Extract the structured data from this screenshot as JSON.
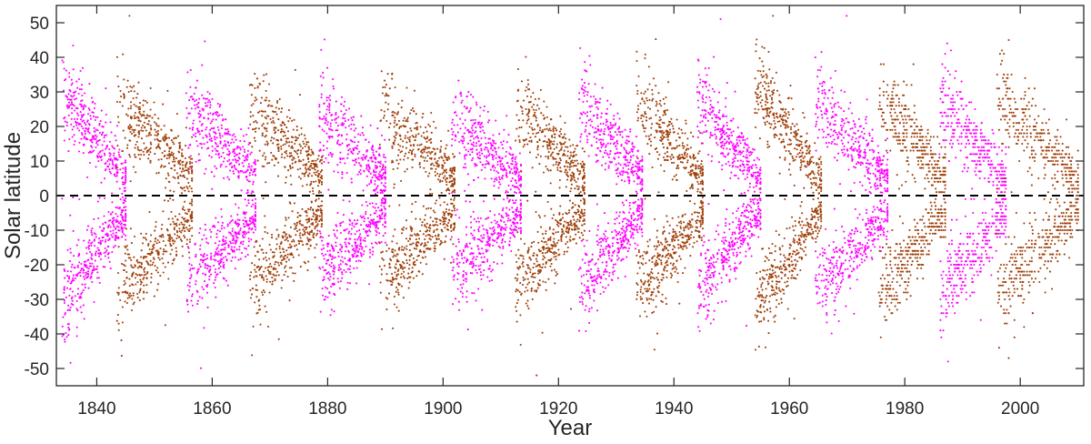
{
  "chart_data": {
    "type": "scatter",
    "title": "",
    "xlabel": "Year",
    "ylabel": "Solar latitude",
    "xlim": [
      1833,
      2011
    ],
    "ylim": [
      -55,
      55
    ],
    "x_ticks": [
      1840,
      1860,
      1880,
      1900,
      1920,
      1940,
      1960,
      1980,
      2000
    ],
    "y_ticks": [
      50,
      40,
      30,
      20,
      10,
      0,
      -10,
      -20,
      -30,
      -40,
      -50
    ],
    "reference_line": {
      "y": 0,
      "style": "dashed",
      "color": "#000000"
    },
    "grid": false,
    "legend": "none",
    "colors": {
      "odd_cycle": "#ff00ff",
      "even_cycle": "#a0400a"
    },
    "series": [
      {
        "cycle_index": 0,
        "color_key": "odd_cycle",
        "start": 1834.0,
        "end": 1845.0,
        "lat_start": 30,
        "lat_end": 6,
        "quantized": false
      },
      {
        "cycle_index": 1,
        "color_key": "even_cycle",
        "start": 1843.5,
        "end": 1856.5,
        "lat_start": 27,
        "lat_end": 6,
        "quantized": false
      },
      {
        "cycle_index": 2,
        "color_key": "odd_cycle",
        "start": 1855.5,
        "end": 1867.5,
        "lat_start": 25,
        "lat_end": 6,
        "quantized": false
      },
      {
        "cycle_index": 3,
        "color_key": "even_cycle",
        "start": 1866.5,
        "end": 1879.0,
        "lat_start": 25,
        "lat_end": 6,
        "quantized": false
      },
      {
        "cycle_index": 4,
        "color_key": "odd_cycle",
        "start": 1878.5,
        "end": 1890.0,
        "lat_start": 24,
        "lat_end": 5,
        "quantized": false
      },
      {
        "cycle_index": 5,
        "color_key": "even_cycle",
        "start": 1889.0,
        "end": 1902.0,
        "lat_start": 25,
        "lat_end": 5,
        "quantized": false
      },
      {
        "cycle_index": 6,
        "color_key": "odd_cycle",
        "start": 1901.5,
        "end": 1913.5,
        "lat_start": 22,
        "lat_end": 5,
        "quantized": false
      },
      {
        "cycle_index": 7,
        "color_key": "even_cycle",
        "start": 1912.5,
        "end": 1924.5,
        "lat_start": 26,
        "lat_end": 5,
        "quantized": false
      },
      {
        "cycle_index": 8,
        "color_key": "odd_cycle",
        "start": 1923.5,
        "end": 1934.5,
        "lat_start": 27,
        "lat_end": 5,
        "quantized": false
      },
      {
        "cycle_index": 9,
        "color_key": "even_cycle",
        "start": 1933.5,
        "end": 1945.0,
        "lat_start": 28,
        "lat_end": 5,
        "quantized": false
      },
      {
        "cycle_index": 10,
        "color_key": "odd_cycle",
        "start": 1944.0,
        "end": 1955.0,
        "lat_start": 27,
        "lat_end": 5,
        "quantized": false
      },
      {
        "cycle_index": 11,
        "color_key": "even_cycle",
        "start": 1954.0,
        "end": 1965.5,
        "lat_start": 32,
        "lat_end": 5,
        "quantized": false
      },
      {
        "cycle_index": 12,
        "color_key": "odd_cycle",
        "start": 1964.5,
        "end": 1977.0,
        "lat_start": 27,
        "lat_end": 5,
        "quantized": false
      },
      {
        "cycle_index": 13,
        "color_key": "even_cycle",
        "start": 1975.5,
        "end": 1987.0,
        "lat_start": 28,
        "lat_end": 5,
        "quantized": true
      },
      {
        "cycle_index": 14,
        "color_key": "odd_cycle",
        "start": 1986.0,
        "end": 1997.5,
        "lat_start": 28,
        "lat_end": 5,
        "quantized": true
      },
      {
        "cycle_index": 15,
        "color_key": "even_cycle",
        "start": 1996.0,
        "end": 2010.0,
        "lat_start": 28,
        "lat_end": 5,
        "quantized": true
      }
    ]
  }
}
